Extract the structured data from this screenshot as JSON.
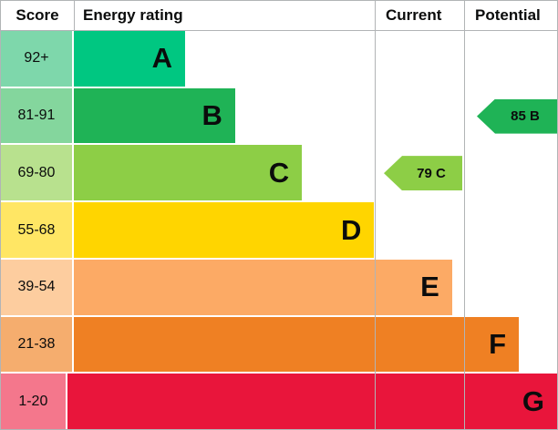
{
  "chart_data": {
    "type": "bar",
    "variant": "epc-energy-rating",
    "header": {
      "score_label": "Score",
      "rating_label": "Energy rating",
      "current_label": "Current",
      "potential_label": "Potential"
    },
    "bands": [
      {
        "score_range": "92+",
        "letter": "A",
        "bar_color": "#00c781",
        "score_bg": "#7ed7ab",
        "width_pct": 20
      },
      {
        "score_range": "81-91",
        "letter": "B",
        "bar_color": "#1fb356",
        "score_bg": "#84d69d",
        "width_pct": 29
      },
      {
        "score_range": "69-80",
        "letter": "C",
        "bar_color": "#8dce46",
        "score_bg": "#b8e18e",
        "width_pct": 41
      },
      {
        "score_range": "55-68",
        "letter": "D",
        "bar_color": "#ffd500",
        "score_bg": "#ffe664",
        "width_pct": 54
      },
      {
        "score_range": "39-54",
        "letter": "E",
        "bar_color": "#fcaa65",
        "score_bg": "#fdcd9f",
        "width_pct": 68
      },
      {
        "score_range": "21-38",
        "letter": "F",
        "bar_color": "#ef8023",
        "score_bg": "#f5ad6e",
        "width_pct": 80
      },
      {
        "score_range": "1-20",
        "letter": "G",
        "bar_color": "#e9153b",
        "score_bg": "#f4778c",
        "width_pct": 97
      }
    ],
    "current": {
      "value": 79,
      "letter": "C",
      "label": "79 C",
      "color": "#8dce46",
      "band_index": 2
    },
    "potential": {
      "value": 85,
      "letter": "B",
      "label": "85 B",
      "color": "#1fb356",
      "band_index": 1
    },
    "border_color": "#b1b4b6"
  }
}
